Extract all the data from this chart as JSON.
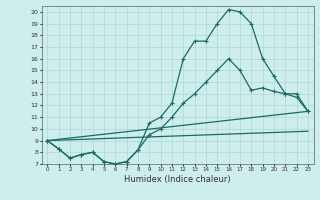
{
  "xlabel": "Humidex (Indice chaleur)",
  "bg_color": "#ceeeed",
  "line_color": "#1a6b60",
  "grid_color": "#aed8d5",
  "xlim": [
    -0.5,
    23.5
  ],
  "ylim": [
    7,
    20.5
  ],
  "xticks": [
    0,
    1,
    2,
    3,
    4,
    5,
    6,
    7,
    8,
    9,
    10,
    11,
    12,
    13,
    14,
    15,
    16,
    17,
    18,
    19,
    20,
    21,
    22,
    23
  ],
  "yticks": [
    7,
    8,
    9,
    10,
    11,
    12,
    13,
    14,
    15,
    16,
    17,
    18,
    19,
    20
  ],
  "line1_x": [
    0,
    1,
    2,
    3,
    4,
    5,
    6,
    7,
    8,
    9,
    10,
    11,
    12,
    13,
    14,
    15,
    16,
    17,
    18,
    19,
    20,
    21,
    22,
    23
  ],
  "line1_y": [
    9,
    8.3,
    7.5,
    7.8,
    8.0,
    7.2,
    7.0,
    7.2,
    8.2,
    10.5,
    11.0,
    12.2,
    16.0,
    17.5,
    17.5,
    19.0,
    20.2,
    20.0,
    19.0,
    16.0,
    14.5,
    13.0,
    13.0,
    11.5
  ],
  "line2_x": [
    0,
    1,
    2,
    3,
    4,
    5,
    6,
    7,
    8,
    9,
    10,
    11,
    12,
    13,
    14,
    15,
    16,
    17,
    18,
    19,
    20,
    21,
    22,
    23
  ],
  "line2_y": [
    9,
    8.3,
    7.5,
    7.8,
    8.0,
    7.2,
    7.0,
    7.2,
    8.2,
    9.5,
    10.0,
    11.0,
    12.2,
    13.0,
    14.0,
    15.0,
    16.0,
    15.0,
    13.3,
    13.5,
    13.2,
    13.0,
    12.7,
    11.5
  ],
  "line3_x": [
    0,
    23
  ],
  "line3_y": [
    9,
    11.5
  ],
  "line4_x": [
    0,
    23
  ],
  "line4_y": [
    9,
    9.8
  ]
}
